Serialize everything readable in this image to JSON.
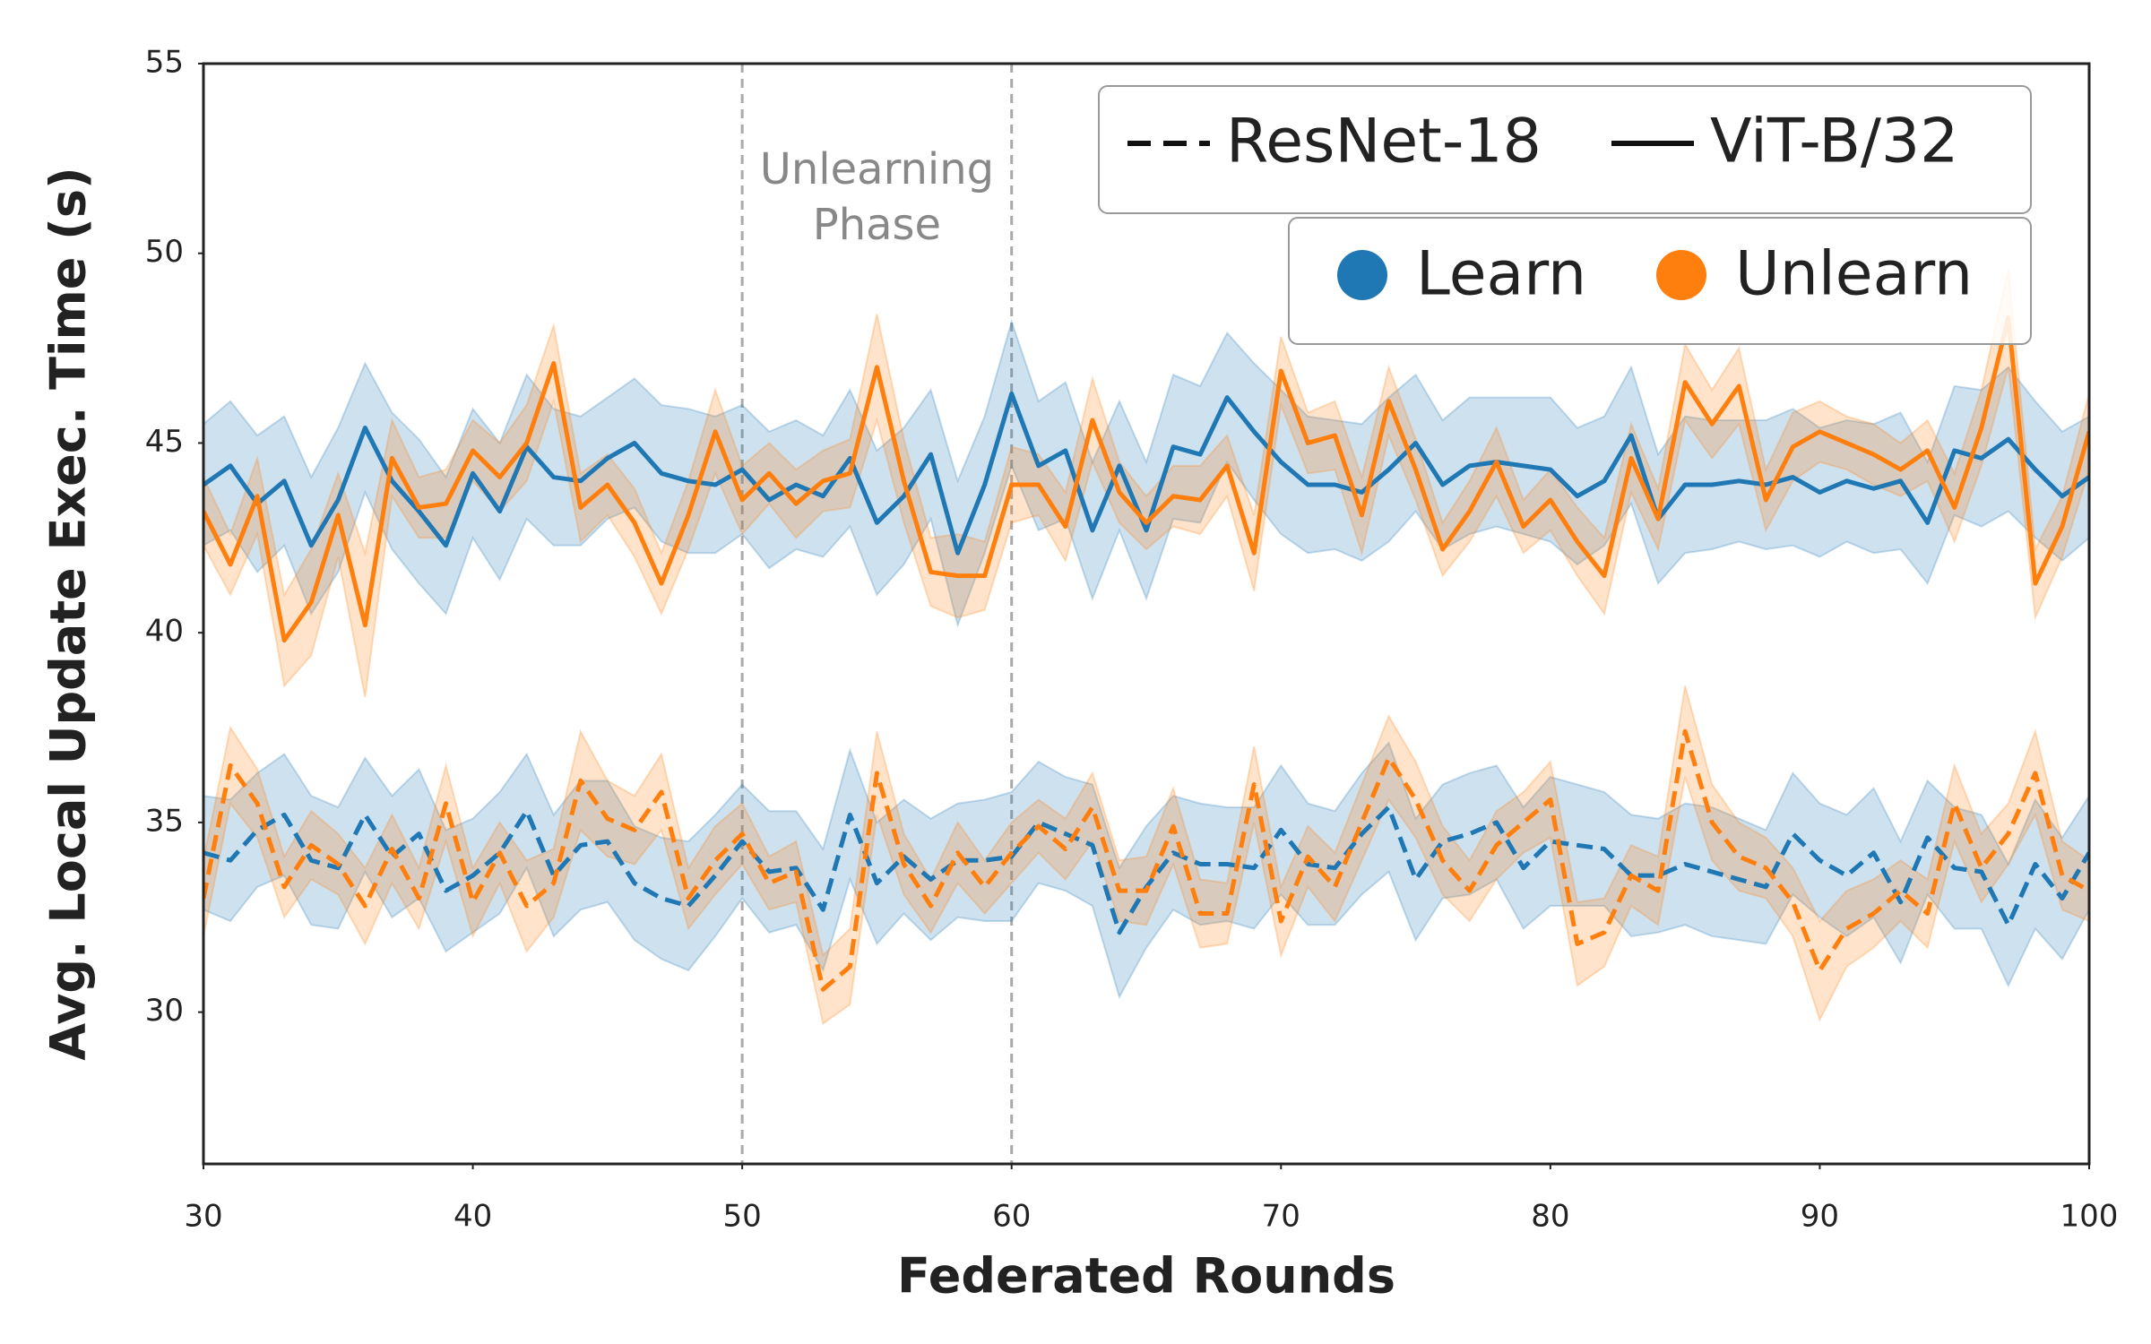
{
  "chart_data": {
    "type": "line",
    "xlabel": "Federated Rounds",
    "ylabel": "Avg. Local Update Exec. Time (s)",
    "xlim": [
      30,
      100
    ],
    "xticks": [
      30,
      40,
      50,
      60,
      70,
      80,
      90,
      100
    ],
    "ylim": [
      26,
      55
    ],
    "yticks": [
      30,
      35,
      40,
      45,
      50,
      55
    ],
    "grid": false,
    "vlines": [
      50,
      60
    ],
    "annotation": [
      "Unlearning",
      "Phase"
    ],
    "style_legend": [
      {
        "label": "ResNet-18",
        "dashed": true
      },
      {
        "label": "ViT-B/32",
        "dashed": false
      }
    ],
    "color_legend": [
      {
        "label": "Learn",
        "color": "#1f77b4"
      },
      {
        "label": "Unlearn",
        "color": "#ff7f0e"
      }
    ],
    "x": [
      30,
      31,
      32,
      33,
      34,
      35,
      36,
      37,
      38,
      39,
      40,
      41,
      42,
      43,
      44,
      45,
      46,
      47,
      48,
      49,
      50,
      51,
      52,
      53,
      54,
      55,
      56,
      57,
      58,
      59,
      60,
      61,
      62,
      63,
      64,
      65,
      66,
      67,
      68,
      69,
      70,
      71,
      72,
      73,
      74,
      75,
      76,
      77,
      78,
      79,
      80,
      81,
      82,
      83,
      84,
      85,
      86,
      87,
      88,
      89,
      90,
      91,
      92,
      93,
      94,
      95,
      96,
      97,
      98,
      99,
      100
    ],
    "series": [
      {
        "style": 1,
        "color": 0,
        "values": [
          43.9,
          44.4,
          43.4,
          44.0,
          42.3,
          43.5,
          45.4,
          44.0,
          43.2,
          42.3,
          44.2,
          43.2,
          44.9,
          44.1,
          44.0,
          44.6,
          45.0,
          44.2,
          44.0,
          43.9,
          44.3,
          43.5,
          43.9,
          43.6,
          44.6,
          42.9,
          43.6,
          44.7,
          42.1,
          43.9,
          46.3,
          44.4,
          44.8,
          42.7,
          44.4,
          42.7,
          44.9,
          44.7,
          46.2,
          45.3,
          44.5,
          43.9,
          43.9,
          43.7,
          44.3,
          45.0,
          43.9,
          44.4,
          44.5,
          44.4,
          44.3,
          43.6,
          44.0,
          45.2,
          43.0,
          43.9,
          43.9,
          44.0,
          43.9,
          44.1,
          43.7,
          44.0,
          43.8,
          44.0,
          42.9,
          44.8,
          44.6,
          45.1,
          44.3,
          43.6,
          44.1
        ],
        "error": [
          1.6,
          1.7,
          1.8,
          1.7,
          1.8,
          1.9,
          1.7,
          1.8,
          1.9,
          1.8,
          1.7,
          1.8,
          1.9,
          1.8,
          1.7,
          1.6,
          1.7,
          1.8,
          1.9,
          1.8,
          1.7,
          1.8,
          1.7,
          1.6,
          1.8,
          1.9,
          1.8,
          1.7,
          1.9,
          1.8,
          1.9,
          1.7,
          1.8,
          1.8,
          1.7,
          1.8,
          1.9,
          1.8,
          1.7,
          1.8,
          1.9,
          1.8,
          1.7,
          1.8,
          1.9,
          1.8,
          1.7,
          1.8,
          1.7,
          1.8,
          1.9,
          1.8,
          1.7,
          1.8,
          1.7,
          1.8,
          1.7,
          1.6,
          1.7,
          1.8,
          1.7,
          1.6,
          1.7,
          1.8,
          1.6,
          1.7,
          1.8,
          1.9,
          1.8,
          1.7,
          1.6
        ]
      },
      {
        "style": 1,
        "color": 1,
        "values": [
          43.2,
          41.8,
          43.6,
          39.8,
          40.8,
          43.1,
          40.2,
          44.6,
          43.3,
          43.4,
          44.8,
          44.1,
          45.0,
          47.1,
          43.3,
          43.9,
          42.9,
          41.3,
          43.1,
          45.3,
          43.5,
          44.2,
          43.4,
          44.0,
          44.2,
          47.0,
          44.0,
          41.6,
          41.5,
          41.5,
          43.9,
          43.9,
          42.8,
          45.6,
          43.7,
          42.9,
          43.6,
          43.5,
          44.4,
          42.1,
          46.9,
          45.0,
          45.2,
          43.1,
          46.1,
          44.3,
          42.2,
          43.2,
          44.5,
          42.8,
          43.5,
          42.4,
          41.5,
          44.6,
          43.0,
          46.6,
          45.5,
          46.5,
          43.5,
          44.9,
          45.3,
          45.0,
          44.7,
          44.3,
          44.8,
          43.3,
          45.4,
          48.3,
          41.3,
          42.8,
          45.3
        ],
        "error": [
          0.9,
          0.8,
          1.0,
          1.2,
          1.4,
          1.1,
          1.9,
          1.0,
          0.8,
          0.9,
          0.8,
          0.9,
          1.0,
          1.0,
          0.9,
          0.8,
          0.9,
          0.8,
          0.9,
          1.1,
          0.9,
          0.8,
          0.9,
          0.8,
          0.9,
          1.4,
          1.1,
          0.9,
          1.1,
          0.9,
          1.0,
          0.8,
          0.9,
          1.1,
          0.8,
          0.7,
          0.8,
          0.9,
          0.8,
          1.0,
          0.9,
          0.8,
          0.9,
          1.0,
          0.9,
          0.8,
          0.7,
          0.8,
          0.9,
          0.7,
          0.8,
          0.9,
          1.0,
          0.9,
          0.8,
          1.0,
          0.9,
          1.0,
          0.8,
          0.9,
          0.8,
          0.7,
          0.8,
          0.7,
          0.8,
          0.9,
          1.0,
          1.3,
          0.9,
          0.8,
          1.0
        ]
      },
      {
        "style": 0,
        "color": 0,
        "values": [
          34.2,
          34.0,
          34.8,
          35.2,
          34.0,
          33.8,
          35.2,
          34.1,
          34.7,
          33.2,
          33.6,
          34.2,
          35.3,
          33.6,
          34.4,
          34.5,
          33.4,
          33.0,
          32.8,
          33.6,
          34.5,
          33.7,
          33.8,
          32.7,
          35.2,
          33.4,
          34.1,
          33.5,
          34.0,
          34.0,
          34.1,
          35.0,
          34.7,
          34.4,
          32.1,
          33.3,
          34.2,
          33.9,
          33.9,
          33.8,
          34.8,
          33.9,
          33.8,
          34.7,
          35.4,
          33.5,
          34.5,
          34.7,
          35.0,
          33.8,
          34.5,
          34.4,
          34.3,
          33.6,
          33.6,
          33.9,
          33.7,
          33.5,
          33.3,
          34.7,
          34.0,
          33.6,
          34.2,
          32.9,
          34.6,
          33.8,
          33.7,
          32.3,
          33.9,
          33.0,
          34.2
        ],
        "error": [
          1.5,
          1.6,
          1.5,
          1.6,
          1.7,
          1.6,
          1.5,
          1.6,
          1.7,
          1.6,
          1.5,
          1.6,
          1.5,
          1.6,
          1.7,
          1.6,
          1.5,
          1.6,
          1.7,
          1.6,
          1.5,
          1.6,
          1.5,
          1.6,
          1.7,
          1.6,
          1.5,
          1.6,
          1.5,
          1.6,
          1.7,
          1.6,
          1.5,
          1.6,
          1.7,
          1.6,
          1.5,
          1.6,
          1.5,
          1.6,
          1.7,
          1.6,
          1.5,
          1.6,
          1.7,
          1.6,
          1.5,
          1.6,
          1.5,
          1.6,
          1.7,
          1.6,
          1.5,
          1.6,
          1.5,
          1.6,
          1.7,
          1.6,
          1.5,
          1.6,
          1.5,
          1.6,
          1.7,
          1.6,
          1.5,
          1.6,
          1.5,
          1.6,
          1.7,
          1.6,
          1.5
        ]
      },
      {
        "style": 0,
        "color": 1,
        "values": [
          33.0,
          36.5,
          35.5,
          33.3,
          34.4,
          33.9,
          32.8,
          34.3,
          33.0,
          35.5,
          32.9,
          34.2,
          32.8,
          33.4,
          36.1,
          35.1,
          34.8,
          35.8,
          33.0,
          34.0,
          34.7,
          33.4,
          33.7,
          30.6,
          31.2,
          36.3,
          33.9,
          32.8,
          34.2,
          33.3,
          34.2,
          34.9,
          34.3,
          35.4,
          33.2,
          33.2,
          34.9,
          32.6,
          32.6,
          36.0,
          32.4,
          34.1,
          33.3,
          35.0,
          36.7,
          35.6,
          34.0,
          33.2,
          34.4,
          35.0,
          35.6,
          31.8,
          32.1,
          33.6,
          33.2,
          37.4,
          35.0,
          34.1,
          33.8,
          32.9,
          31.1,
          32.2,
          32.6,
          33.2,
          32.6,
          35.5,
          33.8,
          34.7,
          36.3,
          33.6,
          33.2
        ],
        "error": [
          1.0,
          1.0,
          0.9,
          0.8,
          0.9,
          0.8,
          1.0,
          0.9,
          0.8,
          1.0,
          0.9,
          0.8,
          1.2,
          0.9,
          1.3,
          1.0,
          0.9,
          1.0,
          0.8,
          0.9,
          0.8,
          0.7,
          0.8,
          0.9,
          1.0,
          1.1,
          0.8,
          0.7,
          0.8,
          0.7,
          0.8,
          0.7,
          0.8,
          0.9,
          0.8,
          0.9,
          1.0,
          0.9,
          0.8,
          1.0,
          0.9,
          0.8,
          0.9,
          1.0,
          1.1,
          1.0,
          0.9,
          0.8,
          0.9,
          0.8,
          1.0,
          1.1,
          0.9,
          0.8,
          0.9,
          1.2,
          1.0,
          0.9,
          0.8,
          0.9,
          1.3,
          1.0,
          0.9,
          0.8,
          0.9,
          1.0,
          0.9,
          0.8,
          1.1,
          0.9,
          0.8
        ]
      }
    ]
  }
}
